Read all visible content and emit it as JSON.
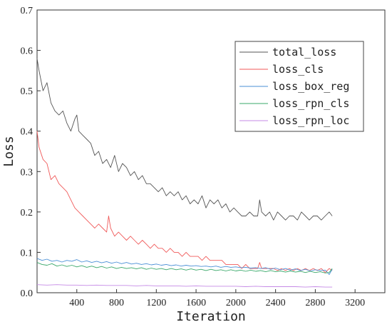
{
  "chart_data": {
    "type": "line",
    "title": "",
    "xlabel": "Iteration",
    "ylabel": "Loss",
    "xlim": [
      0,
      3500
    ],
    "ylim": [
      0,
      0.7
    ],
    "x_ticks": [
      400,
      800,
      1200,
      1600,
      2000,
      2400,
      2800,
      3200
    ],
    "y_ticks": [
      0.0,
      0.1,
      0.2,
      0.3,
      0.4,
      0.5,
      0.6,
      0.7
    ],
    "x_tick_labels": [
      "400",
      "800",
      "1200",
      "1600",
      "2000",
      "2400",
      "2800",
      "3200"
    ],
    "y_tick_labels": [
      "0.0",
      "0.1",
      "0.2",
      "0.3",
      "0.4",
      "0.5",
      "0.6",
      "0.7"
    ],
    "grid": false,
    "legend_position": "top-right",
    "series": [
      {
        "name": "total_loss",
        "color": "#555555",
        "x": [
          0,
          20,
          60,
          100,
          140,
          180,
          220,
          260,
          300,
          340,
          380,
          400,
          420,
          460,
          500,
          540,
          580,
          620,
          660,
          700,
          740,
          780,
          820,
          860,
          900,
          940,
          980,
          1020,
          1060,
          1100,
          1140,
          1180,
          1220,
          1260,
          1300,
          1340,
          1380,
          1420,
          1460,
          1500,
          1540,
          1580,
          1620,
          1660,
          1700,
          1740,
          1780,
          1820,
          1860,
          1900,
          1940,
          1980,
          2020,
          2060,
          2100,
          2140,
          2180,
          2220,
          2240,
          2260,
          2300,
          2340,
          2380,
          2420,
          2460,
          2500,
          2540,
          2580,
          2620,
          2660,
          2700,
          2740,
          2780,
          2820,
          2860,
          2900,
          2940,
          2970
        ],
        "y": [
          0.58,
          0.55,
          0.5,
          0.52,
          0.47,
          0.45,
          0.44,
          0.45,
          0.42,
          0.4,
          0.43,
          0.44,
          0.4,
          0.39,
          0.38,
          0.37,
          0.34,
          0.35,
          0.32,
          0.33,
          0.31,
          0.34,
          0.3,
          0.32,
          0.31,
          0.29,
          0.3,
          0.28,
          0.29,
          0.27,
          0.27,
          0.26,
          0.25,
          0.26,
          0.24,
          0.25,
          0.24,
          0.25,
          0.23,
          0.24,
          0.22,
          0.23,
          0.22,
          0.24,
          0.21,
          0.23,
          0.22,
          0.23,
          0.21,
          0.22,
          0.2,
          0.21,
          0.2,
          0.19,
          0.19,
          0.2,
          0.19,
          0.19,
          0.23,
          0.2,
          0.19,
          0.2,
          0.18,
          0.2,
          0.19,
          0.18,
          0.19,
          0.19,
          0.18,
          0.2,
          0.19,
          0.18,
          0.19,
          0.19,
          0.18,
          0.19,
          0.2,
          0.19
        ]
      },
      {
        "name": "loss_cls",
        "color": "#f05a5a",
        "x": [
          0,
          20,
          60,
          100,
          140,
          180,
          220,
          260,
          300,
          340,
          380,
          420,
          460,
          500,
          540,
          580,
          620,
          660,
          700,
          720,
          740,
          780,
          820,
          860,
          900,
          940,
          980,
          1020,
          1060,
          1100,
          1140,
          1180,
          1220,
          1260,
          1300,
          1340,
          1380,
          1420,
          1460,
          1500,
          1540,
          1580,
          1620,
          1660,
          1700,
          1740,
          1780,
          1820,
          1860,
          1900,
          1940,
          1980,
          2020,
          2060,
          2100,
          2140,
          2180,
          2220,
          2240,
          2260,
          2300,
          2340,
          2380,
          2420,
          2460,
          2500,
          2540,
          2580,
          2620,
          2660,
          2700,
          2740,
          2780,
          2820,
          2860,
          2900,
          2940,
          2970
        ],
        "y": [
          0.4,
          0.36,
          0.33,
          0.32,
          0.28,
          0.29,
          0.27,
          0.26,
          0.25,
          0.23,
          0.21,
          0.2,
          0.19,
          0.18,
          0.17,
          0.16,
          0.17,
          0.16,
          0.15,
          0.19,
          0.16,
          0.14,
          0.15,
          0.14,
          0.13,
          0.14,
          0.13,
          0.12,
          0.13,
          0.12,
          0.11,
          0.12,
          0.11,
          0.11,
          0.1,
          0.11,
          0.1,
          0.1,
          0.09,
          0.1,
          0.09,
          0.09,
          0.09,
          0.08,
          0.09,
          0.08,
          0.08,
          0.08,
          0.08,
          0.07,
          0.07,
          0.07,
          0.07,
          0.06,
          0.07,
          0.06,
          0.06,
          0.06,
          0.075,
          0.06,
          0.06,
          0.06,
          0.06,
          0.055,
          0.06,
          0.055,
          0.06,
          0.055,
          0.06,
          0.055,
          0.06,
          0.055,
          0.06,
          0.055,
          0.06,
          0.05,
          0.06,
          0.055
        ]
      },
      {
        "name": "loss_box_reg",
        "color": "#4a8fd6",
        "x": [
          0,
          50,
          100,
          150,
          200,
          250,
          300,
          350,
          400,
          450,
          500,
          550,
          600,
          650,
          700,
          750,
          800,
          850,
          900,
          950,
          1000,
          1050,
          1100,
          1150,
          1200,
          1250,
          1300,
          1350,
          1400,
          1450,
          1500,
          1550,
          1600,
          1650,
          1700,
          1750,
          1800,
          1850,
          1900,
          1950,
          2000,
          2050,
          2100,
          2150,
          2200,
          2250,
          2300,
          2350,
          2400,
          2450,
          2500,
          2550,
          2600,
          2650,
          2700,
          2750,
          2800,
          2850,
          2900,
          2940,
          2970
        ],
        "y": [
          0.085,
          0.08,
          0.083,
          0.078,
          0.08,
          0.076,
          0.08,
          0.078,
          0.082,
          0.076,
          0.079,
          0.075,
          0.078,
          0.074,
          0.077,
          0.073,
          0.076,
          0.072,
          0.075,
          0.071,
          0.073,
          0.07,
          0.072,
          0.069,
          0.071,
          0.068,
          0.07,
          0.067,
          0.069,
          0.066,
          0.068,
          0.066,
          0.067,
          0.065,
          0.066,
          0.064,
          0.066,
          0.063,
          0.065,
          0.063,
          0.064,
          0.062,
          0.063,
          0.061,
          0.062,
          0.06,
          0.062,
          0.058,
          0.061,
          0.057,
          0.06,
          0.056,
          0.059,
          0.055,
          0.058,
          0.054,
          0.057,
          0.055,
          0.056,
          0.045,
          0.058
        ]
      },
      {
        "name": "loss_rpn_cls",
        "color": "#3aa86a",
        "x": [
          0,
          50,
          100,
          150,
          200,
          250,
          300,
          350,
          400,
          450,
          500,
          550,
          600,
          650,
          700,
          750,
          800,
          850,
          900,
          950,
          1000,
          1050,
          1100,
          1150,
          1200,
          1250,
          1300,
          1350,
          1400,
          1450,
          1500,
          1550,
          1600,
          1650,
          1700,
          1750,
          1800,
          1850,
          1900,
          1950,
          2000,
          2050,
          2100,
          2150,
          2200,
          2250,
          2300,
          2350,
          2400,
          2450,
          2500,
          2550,
          2600,
          2650,
          2700,
          2750,
          2800,
          2850,
          2900,
          2940,
          2970
        ],
        "y": [
          0.075,
          0.07,
          0.068,
          0.072,
          0.066,
          0.069,
          0.065,
          0.068,
          0.064,
          0.067,
          0.063,
          0.066,
          0.062,
          0.065,
          0.061,
          0.064,
          0.06,
          0.063,
          0.06,
          0.062,
          0.059,
          0.062,
          0.058,
          0.061,
          0.058,
          0.06,
          0.057,
          0.06,
          0.057,
          0.059,
          0.056,
          0.059,
          0.056,
          0.058,
          0.055,
          0.058,
          0.055,
          0.057,
          0.054,
          0.057,
          0.054,
          0.056,
          0.053,
          0.056,
          0.053,
          0.055,
          0.052,
          0.055,
          0.052,
          0.054,
          0.051,
          0.054,
          0.051,
          0.053,
          0.05,
          0.053,
          0.05,
          0.052,
          0.049,
          0.05,
          0.06
        ]
      },
      {
        "name": "loss_rpn_loc",
        "color": "#c58ae6",
        "x": [
          0,
          100,
          200,
          300,
          400,
          500,
          600,
          700,
          800,
          900,
          1000,
          1100,
          1200,
          1300,
          1400,
          1500,
          1600,
          1700,
          1800,
          1900,
          2000,
          2100,
          2200,
          2300,
          2400,
          2500,
          2600,
          2700,
          2800,
          2900,
          2970
        ],
        "y": [
          0.02,
          0.019,
          0.02,
          0.019,
          0.019,
          0.018,
          0.019,
          0.018,
          0.018,
          0.018,
          0.017,
          0.018,
          0.017,
          0.017,
          0.017,
          0.016,
          0.017,
          0.016,
          0.016,
          0.016,
          0.016,
          0.015,
          0.016,
          0.015,
          0.015,
          0.015,
          0.015,
          0.014,
          0.015,
          0.014,
          0.014
        ]
      }
    ]
  }
}
